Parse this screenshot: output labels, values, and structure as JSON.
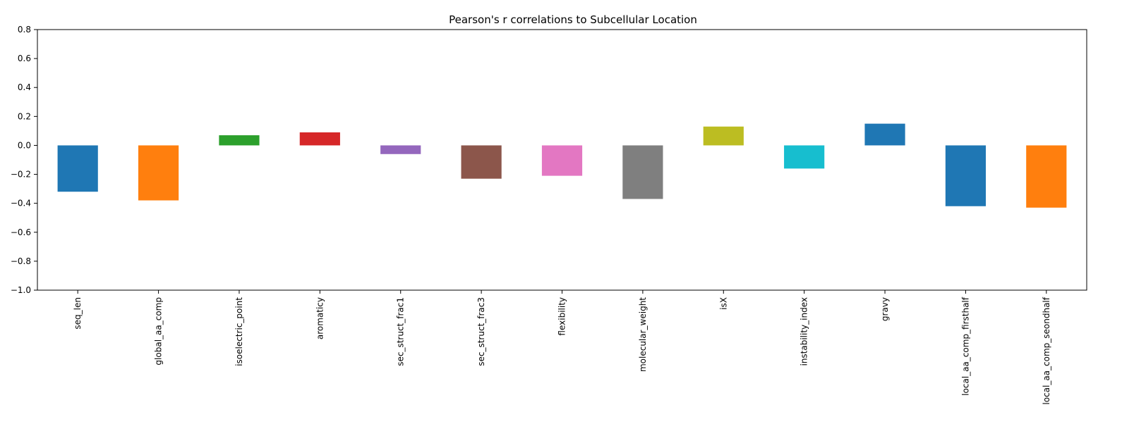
{
  "chart_data": {
    "type": "bar",
    "title": "Pearson's r correlations to Subcellular Location",
    "xlabel": "",
    "ylabel": "",
    "ylim": [
      -1.0,
      0.8
    ],
    "yticks": [
      0.8,
      0.6,
      0.4,
      0.2,
      0.0,
      -0.2,
      -0.4,
      -0.6,
      -0.8,
      -1.0
    ],
    "ytick_labels": [
      "0.8",
      "0.6",
      "0.4",
      "0.2",
      "0.0",
      "−0.2",
      "−0.4",
      "−0.6",
      "−0.8",
      "−1.0"
    ],
    "grid": false,
    "categories": [
      "seq_len",
      "global_aa_comp",
      "isoelectric_point",
      "aromaticy",
      "sec_struct_frac1",
      "sec_struct_frac3",
      "flexibility",
      "molecular_weight",
      "isX",
      "instability_index",
      "gravy",
      "local_aa_comp_firsthalf",
      "local_aa_comp_seondhalf"
    ],
    "values": [
      -0.32,
      -0.38,
      0.07,
      0.09,
      -0.06,
      -0.23,
      -0.21,
      -0.37,
      0.13,
      -0.16,
      0.15,
      -0.42,
      -0.43
    ],
    "colors": [
      "#1f77b4",
      "#ff7f0e",
      "#2ca02c",
      "#d62728",
      "#9467bd",
      "#8c564b",
      "#e377c2",
      "#7f7f7f",
      "#bcbd22",
      "#17becf",
      "#1f77b4",
      "#1f77b4",
      "#ff7f0e"
    ]
  }
}
